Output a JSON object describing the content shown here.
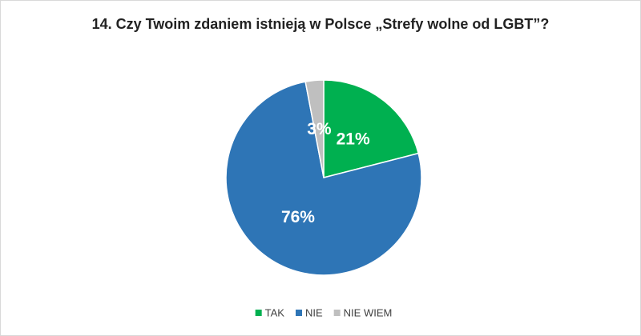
{
  "chart_data": {
    "type": "pie",
    "title": "14. Czy Twoim zdaniem istnieją w Polsce „Strefy wolne od LGBT”?",
    "categories": [
      "TAK",
      "NIE",
      "NIE WIEM"
    ],
    "values": [
      21,
      76,
      3
    ],
    "value_labels": [
      "21%",
      "76%",
      "3%"
    ],
    "colors": [
      "#00b050",
      "#2e75b6",
      "#bfbfbf"
    ],
    "legend": "bottom"
  }
}
